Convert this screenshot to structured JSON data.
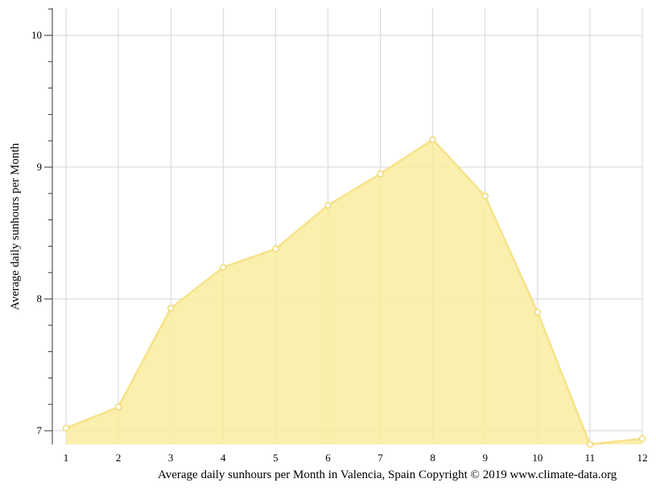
{
  "caption": "Average daily sunhours per Month in Valencia, Spain Copyright © 2019 www.climate-data.org",
  "chart_data": {
    "type": "area",
    "title": "",
    "xlabel": "",
    "ylabel": "Average daily sunhours per Month",
    "x": [
      1,
      2,
      3,
      4,
      5,
      6,
      7,
      8,
      9,
      10,
      11,
      12
    ],
    "values": [
      7.02,
      7.18,
      7.93,
      8.24,
      8.38,
      8.71,
      8.95,
      9.21,
      8.78,
      7.9,
      6.89,
      6.94
    ],
    "x_ticks": [
      "1",
      "2",
      "3",
      "4",
      "5",
      "6",
      "7",
      "8",
      "9",
      "10",
      "11",
      "12"
    ],
    "y_ticks": [
      7,
      8,
      9,
      10
    ],
    "ylim": [
      6.9,
      10.2
    ],
    "xlim": [
      1,
      12
    ],
    "grid": true,
    "legend": "none",
    "colors": {
      "fill": "#f9ec9e",
      "line": "#f7e28a",
      "point_stroke": "#eed668",
      "grid": "#d6d6d6"
    }
  }
}
